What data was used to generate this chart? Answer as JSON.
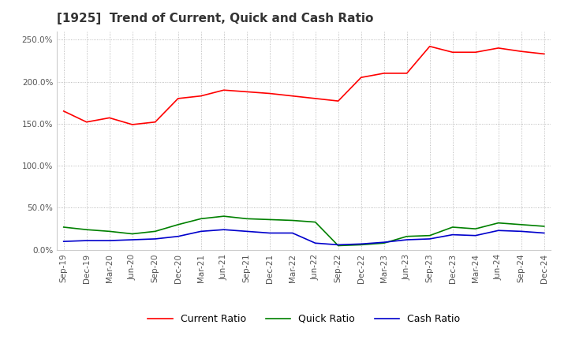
{
  "title": "[1925]  Trend of Current, Quick and Cash Ratio",
  "title_fontsize": 11,
  "background_color": "#ffffff",
  "grid_color": "#aaaaaa",
  "x_labels": [
    "Sep-19",
    "Dec-19",
    "Mar-20",
    "Jun-20",
    "Sep-20",
    "Dec-20",
    "Mar-21",
    "Jun-21",
    "Sep-21",
    "Dec-21",
    "Mar-22",
    "Jun-22",
    "Sep-22",
    "Dec-22",
    "Mar-23",
    "Jun-23",
    "Sep-23",
    "Dec-23",
    "Mar-24",
    "Jun-24",
    "Sep-24",
    "Dec-24"
  ],
  "current_ratio": [
    1.65,
    1.52,
    1.57,
    1.49,
    1.52,
    1.8,
    1.83,
    1.9,
    1.88,
    1.86,
    1.83,
    1.8,
    1.77,
    2.05,
    2.1,
    2.1,
    2.42,
    2.35,
    2.35,
    2.4,
    2.36,
    2.33
  ],
  "quick_ratio": [
    0.27,
    0.24,
    0.22,
    0.19,
    0.22,
    0.3,
    0.37,
    0.4,
    0.37,
    0.36,
    0.35,
    0.33,
    0.05,
    0.06,
    0.08,
    0.16,
    0.17,
    0.27,
    0.25,
    0.32,
    0.3,
    0.28
  ],
  "cash_ratio": [
    0.1,
    0.11,
    0.11,
    0.12,
    0.13,
    0.16,
    0.22,
    0.24,
    0.22,
    0.2,
    0.2,
    0.08,
    0.06,
    0.07,
    0.09,
    0.12,
    0.13,
    0.18,
    0.17,
    0.23,
    0.22,
    0.2
  ],
  "current_color": "#ff0000",
  "quick_color": "#008000",
  "cash_color": "#0000cc",
  "line_width": 1.2,
  "legend_labels": [
    "Current Ratio",
    "Quick Ratio",
    "Cash Ratio"
  ],
  "ytick_values": [
    0.0,
    0.5,
    1.0,
    1.5,
    2.0,
    2.5
  ],
  "ylim": [
    0.0,
    2.6
  ]
}
